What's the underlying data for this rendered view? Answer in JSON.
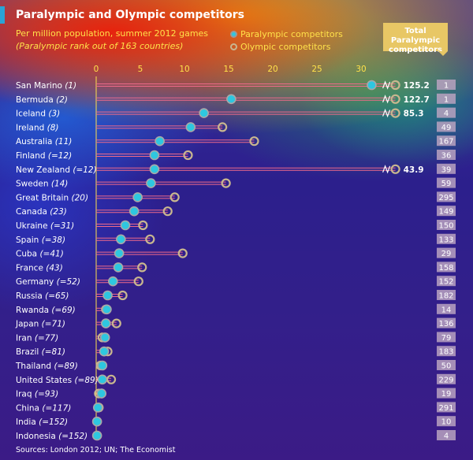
{
  "header": {
    "title": "Paralympic and Olympic competitors",
    "subtitle": "Per million population, summer 2012 games",
    "note": "(Paralympic rank out of 163 countries)"
  },
  "legend": {
    "paralympic": "Paralympic competitors",
    "olympic": "Olympic competitors"
  },
  "totals_header": "Total Paralympic competitors",
  "source": "Sources: London 2012; UN; The Economist",
  "colors": {
    "paralympic_marker": "#2ec7e0",
    "olympic_marker": "#c9b78f",
    "connector": "#f06a8a",
    "total_box": "#b8a2c0"
  },
  "chart_data": {
    "type": "dot",
    "xlim": [
      0,
      33
    ],
    "xticks": [
      0,
      5,
      10,
      15,
      20,
      25,
      30
    ],
    "grid": false,
    "legend_position": "top",
    "series_names": [
      "Paralympic competitors",
      "Olympic competitors"
    ],
    "rows": [
      {
        "country": "San Marino",
        "rank": "1",
        "paralympic": 31.2,
        "olympic": 125.2,
        "olympic_label": "125.2",
        "total": 1
      },
      {
        "country": "Bermuda",
        "rank": "2",
        "paralympic": 15.3,
        "olympic": 122.7,
        "olympic_label": "122.7",
        "total": 1
      },
      {
        "country": "Iceland",
        "rank": "3",
        "paralympic": 12.2,
        "olympic": 85.3,
        "olympic_label": "85.3",
        "total": 4
      },
      {
        "country": "Ireland",
        "rank": "8",
        "paralympic": 10.7,
        "olympic": 14.3,
        "olympic_label": "",
        "total": 49
      },
      {
        "country": "Australia",
        "rank": "11",
        "paralympic": 7.2,
        "olympic": 17.9,
        "olympic_label": "",
        "total": 167
      },
      {
        "country": "Finland",
        "rank": "=12",
        "paralympic": 6.6,
        "olympic": 10.4,
        "olympic_label": "",
        "total": 36
      },
      {
        "country": "New Zealand",
        "rank": "=12",
        "paralympic": 6.6,
        "olympic": 43.9,
        "olympic_label": "43.9",
        "total": 39
      },
      {
        "country": "Sweden",
        "rank": "14",
        "paralympic": 6.2,
        "olympic": 14.7,
        "olympic_label": "",
        "total": 59
      },
      {
        "country": "Great Britain",
        "rank": "20",
        "paralympic": 4.7,
        "olympic": 8.9,
        "olympic_label": "",
        "total": 295
      },
      {
        "country": "Canada",
        "rank": "23",
        "paralympic": 4.3,
        "olympic": 8.1,
        "olympic_label": "",
        "total": 149
      },
      {
        "country": "Ukraine",
        "rank": "=31",
        "paralympic": 3.3,
        "olympic": 5.3,
        "olympic_label": "",
        "total": 150
      },
      {
        "country": "Spain",
        "rank": "=38",
        "paralympic": 2.8,
        "olympic": 6.1,
        "olympic_label": "",
        "total": 133
      },
      {
        "country": "Cuba",
        "rank": "=41",
        "paralympic": 2.6,
        "olympic": 9.8,
        "olympic_label": "",
        "total": 29
      },
      {
        "country": "France",
        "rank": "43",
        "paralympic": 2.5,
        "olympic": 5.2,
        "olympic_label": "",
        "total": 158
      },
      {
        "country": "Germany",
        "rank": "=52",
        "paralympic": 1.9,
        "olympic": 4.8,
        "olympic_label": "",
        "total": 152
      },
      {
        "country": "Russia",
        "rank": "=65",
        "paralympic": 1.3,
        "olympic": 3.0,
        "olympic_label": "",
        "total": 182
      },
      {
        "country": "Rwanda",
        "rank": "=69",
        "paralympic": 1.2,
        "olympic": 1.1,
        "olympic_label": "",
        "total": 14
      },
      {
        "country": "Japan",
        "rank": "=71",
        "paralympic": 1.1,
        "olympic": 2.3,
        "olympic_label": "",
        "total": 136
      },
      {
        "country": "Iran",
        "rank": "=77",
        "paralympic": 1.0,
        "olympic": 0.7,
        "olympic_label": "",
        "total": 79
      },
      {
        "country": "Brazil",
        "rank": "=81",
        "paralympic": 0.9,
        "olympic": 1.3,
        "olympic_label": "",
        "total": 183
      },
      {
        "country": "Thailand",
        "rank": "=89",
        "paralympic": 0.7,
        "olympic": 0.5,
        "olympic_label": "",
        "total": 50
      },
      {
        "country": "United States",
        "rank": "=89",
        "paralympic": 0.7,
        "olympic": 1.7,
        "olympic_label": "",
        "total": 229
      },
      {
        "country": "Iraq",
        "rank": "=93",
        "paralympic": 0.6,
        "olympic": 0.3,
        "olympic_label": "",
        "total": 19
      },
      {
        "country": "China",
        "rank": "=117",
        "paralympic": 0.2,
        "olympic": 0.3,
        "olympic_label": "",
        "total": 291
      },
      {
        "country": "India",
        "rank": "=152",
        "paralympic": 0.1,
        "olympic": 0.1,
        "olympic_label": "",
        "total": 10
      },
      {
        "country": "Indonesia",
        "rank": "=152",
        "paralympic": 0.1,
        "olympic": 0.1,
        "olympic_label": "",
        "total": 4
      }
    ]
  }
}
